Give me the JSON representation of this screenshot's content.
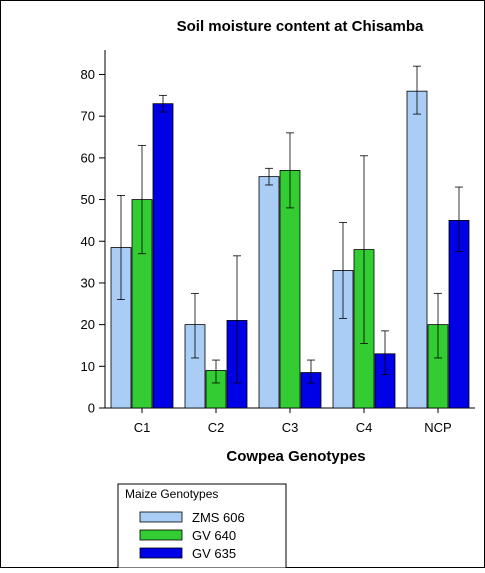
{
  "chart_data": {
    "type": "bar",
    "title": "Soil moisture content at Chisamba",
    "xlabel": "Cowpea Genotypes",
    "ylabel": "",
    "ylim": [
      0,
      80
    ],
    "yticks": [
      0,
      10,
      20,
      30,
      40,
      50,
      60,
      70,
      80
    ],
    "categories": [
      "C1",
      "C2",
      "C3",
      "C4",
      "NCP"
    ],
    "series": [
      {
        "name": "ZMS 606",
        "color": "#a9cdf5",
        "values": [
          38.5,
          20,
          55.5,
          33,
          76
        ],
        "error_low": [
          26,
          12,
          53.5,
          21.5,
          70.5
        ],
        "error_high": [
          51,
          27.5,
          57.5,
          44.5,
          82
        ]
      },
      {
        "name": "GV 640",
        "color": "#33cc33",
        "values": [
          50,
          9,
          57,
          38,
          20
        ],
        "error_low": [
          37,
          6,
          48,
          15.5,
          12
        ],
        "error_high": [
          63,
          11.5,
          66,
          60.5,
          27.5
        ]
      },
      {
        "name": "GV 635",
        "color": "#0000e6",
        "values": [
          73,
          21,
          8.5,
          13,
          45
        ],
        "error_low": [
          71,
          6,
          6,
          8,
          37.5
        ],
        "error_high": [
          75,
          36.5,
          11.5,
          18.5,
          53
        ]
      }
    ],
    "legend": {
      "title": "Maize Genotypes",
      "position": "bottom-left"
    },
    "grid": false
  }
}
